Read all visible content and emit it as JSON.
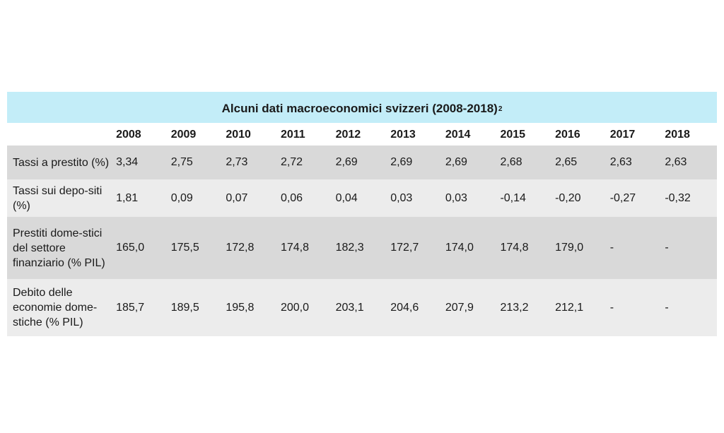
{
  "table": {
    "title": "Alcuni dati macroeconomici svizzeri (2008-2018)",
    "title_footnote": "2",
    "header_label": "",
    "years": [
      "2008",
      "2009",
      "2010",
      "2011",
      "2012",
      "2013",
      "2014",
      "2015",
      "2016",
      "2017",
      "2018"
    ],
    "rows": [
      {
        "label": "Tassi a prestito (%)",
        "values": [
          "3,34",
          "2,75",
          "2,73",
          "2,72",
          "2,69",
          "2,69",
          "2,69",
          "2,68",
          "2,65",
          "2,63",
          "2,63"
        ]
      },
      {
        "label": "Tassi sui depo-siti (%)",
        "values": [
          "1,81",
          "0,09",
          "0,07",
          "0,06",
          "0,04",
          "0,03",
          "0,03",
          "-0,14",
          "-0,20",
          "-0,27",
          "-0,32"
        ]
      },
      {
        "label": "Prestiti dome-stici del settore finanziario (% PIL)",
        "values": [
          "165,0",
          "175,5",
          "172,8",
          "174,8",
          "182,3",
          "172,7",
          "174,0",
          "174,8",
          "179,0",
          "-",
          "-"
        ]
      },
      {
        "label": "Debito delle economie dome-stiche (% PIL)",
        "values": [
          "185,7",
          "189,5",
          "195,8",
          "200,0",
          "203,1",
          "204,6",
          "207,9",
          "213,2",
          "212,1",
          "-",
          "-"
        ]
      }
    ]
  },
  "colors": {
    "title_background": "#c3edf8",
    "row_dark": "#d9d9d9",
    "row_light": "#ececec"
  }
}
